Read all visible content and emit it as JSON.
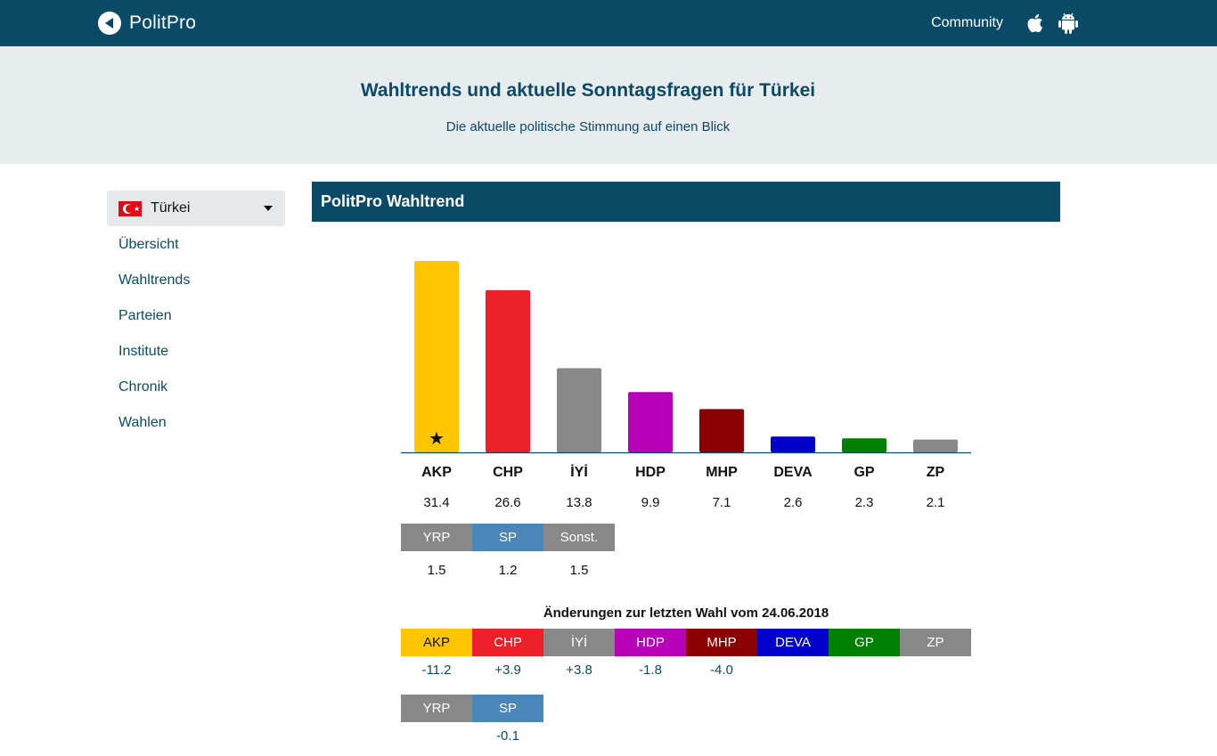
{
  "header": {
    "logo_text": "PolitPro",
    "community_label": "Community",
    "icons": [
      "apple-icon",
      "android-icon"
    ]
  },
  "hero": {
    "title": "Wahltrends und aktuelle Sonntagsfragen für Türkei",
    "subtitle": "Die aktuelle politische Stimmung auf einen Blick"
  },
  "sidebar": {
    "country": "Türkei",
    "items": [
      {
        "label": "Übersicht"
      },
      {
        "label": "Wahltrends"
      },
      {
        "label": "Parteien"
      },
      {
        "label": "Institute"
      },
      {
        "label": "Chronik"
      },
      {
        "label": "Wahlen"
      }
    ]
  },
  "panel": {
    "title": "PolitPro Wahltrend"
  },
  "chart_data": {
    "type": "bar",
    "categories": [
      "AKP",
      "CHP",
      "İYİ",
      "HDP",
      "MHP",
      "DEVA",
      "GP",
      "ZP"
    ],
    "values": [
      31.4,
      26.6,
      13.8,
      9.9,
      7.1,
      2.6,
      2.3,
      2.1
    ],
    "colors": [
      "#ffc600",
      "#ed1f28",
      "#888888",
      "#b800b8",
      "#8b0000",
      "#0000cc",
      "#008000",
      "#888888"
    ],
    "ylim": [
      0,
      31.4
    ],
    "marked_leader": "AKP",
    "value_labels": [
      "31.4",
      "26.6",
      "13.8",
      "9.9",
      "7.1",
      "2.6",
      "2.3",
      "2.1"
    ]
  },
  "other_parties": [
    {
      "name": "YRP",
      "value": "1.5",
      "color": "#888888"
    },
    {
      "name": "SP",
      "value": "1.2",
      "color": "#4a86b8"
    },
    {
      "name": "Sonst.",
      "value": "1.5",
      "color": "#888888"
    }
  ],
  "changes": {
    "title": "Änderungen zur letzten Wahl vom 24.06.2018",
    "row1": [
      {
        "name": "AKP",
        "change": "-11.2",
        "color": "#ffc600"
      },
      {
        "name": "CHP",
        "change": "+3.9",
        "color": "#ed1f28"
      },
      {
        "name": "İYİ",
        "change": "+3.8",
        "color": "#888888"
      },
      {
        "name": "HDP",
        "change": "-1.8",
        "color": "#b800b8"
      },
      {
        "name": "MHP",
        "change": "-4.0",
        "color": "#8b0000"
      },
      {
        "name": "DEVA",
        "change": "",
        "color": "#0000cc"
      },
      {
        "name": "GP",
        "change": "",
        "color": "#008000"
      },
      {
        "name": "ZP",
        "change": "",
        "color": "#888888"
      }
    ],
    "row2": [
      {
        "name": "YRP",
        "change": "",
        "color": "#888888"
      },
      {
        "name": "SP",
        "change": "-0.1",
        "color": "#4a86b8"
      }
    ]
  }
}
